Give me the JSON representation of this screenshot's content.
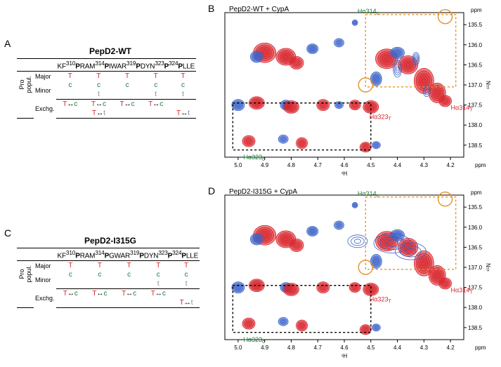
{
  "panelA": {
    "letter": "A",
    "title": "PepD2-WT",
    "sequence_html": "KF<sup>310</sup><b>P</b>RAM<sup>314</sup><b>P</b>IWAR<sup>319</sup><b>P</b>DYN<sup>323</sup><b>P</b><sup>324</sup><b>P</b>LLE",
    "row_labels": {
      "group": "Pro\npopul.",
      "major": "Major",
      "minor": "Minor",
      "exchg": "Exchg."
    },
    "major": [
      "T",
      "T",
      "T",
      "T",
      "T"
    ],
    "minor_top": [
      "c",
      "c",
      "c",
      "c",
      "c"
    ],
    "minor_bot": [
      "",
      "t",
      "",
      "t",
      "t"
    ],
    "exchg_top": [
      "T↔c",
      "T↔c",
      "T↔c",
      "T↔c",
      ""
    ],
    "exchg_bot": [
      "",
      "T↔t",
      "",
      "",
      "T↔t"
    ]
  },
  "panelC": {
    "letter": "C",
    "title": "PepD2-I315G",
    "sequence_html": "KF<sup>310</sup><b>P</b>RAM<sup>314</sup><b>P</b>GWAR<sup>319</sup><b>P</b>DYN<sup>323</sup><b>P</b><sup>324</sup><b>P</b>LLE",
    "major": [
      "T",
      "T",
      "T",
      "T",
      "T"
    ],
    "minor_top": [
      "c",
      "c",
      "c",
      "c",
      "c"
    ],
    "minor_bot": [
      "",
      "",
      "",
      "t",
      "t"
    ],
    "exchg_top": [
      "T↔c",
      "T↔c",
      "T↔c",
      "T↔c",
      ""
    ],
    "exchg_bot": [
      "",
      "",
      "",
      "",
      "T↔t"
    ]
  },
  "panelB": {
    "letter": "B",
    "title": "PepD2-WT + CypA",
    "xlabel": "¹H",
    "ylabel": "¹⁵N",
    "ppm": "ppm",
    "yticks": [
      "135.5",
      "136.0",
      "136.5",
      "137.0",
      "137.5",
      "138.0",
      "138.5"
    ],
    "xticks": [
      "5.0",
      "4.9",
      "4.8",
      "4.7",
      "4.6",
      "4.5",
      "4.4",
      "4.3",
      "4.2"
    ],
    "labels": {
      "Ha314c": "Hα314",
      "Ha314c_sub": "c",
      "Ha314T": "Hα314",
      "Ha314T_sub": "T",
      "Ha323T": "Hα323",
      "Ha323T_sub": "T",
      "Ha323c": "Hα323",
      "Ha323c_sub": "c"
    }
  },
  "panelD": {
    "letter": "D",
    "title": "PepD2-I315G + CypA"
  },
  "colors": {
    "red": "#d8232a",
    "green": "#1a7a3a",
    "orange": "#e69027",
    "blue": "#3a63c9",
    "black": "#000000",
    "gray": "#888888"
  }
}
